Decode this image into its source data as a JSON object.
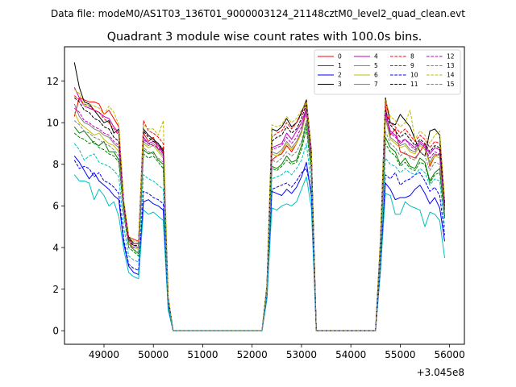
{
  "chart_data": {
    "type": "line",
    "suptitle": "Data file: modeM0/AS1T03_136T01_9000003124_21148cztM0_level2_quad_clean.evt",
    "title": "Quadrant 3 module wise count rates with 100.0s bins.",
    "xlabel": "",
    "ylabel": "",
    "x_offset_label": "+3.045e8",
    "xlim": [
      48200,
      56300
    ],
    "ylim": [
      -0.65,
      13.65
    ],
    "xticks": [
      49000,
      50000,
      51000,
      52000,
      53000,
      54000,
      55000,
      56000
    ],
    "yticks": [
      0,
      2,
      4,
      6,
      8,
      10,
      12
    ],
    "x": [
      48400,
      48500,
      48600,
      48700,
      48800,
      48900,
      49000,
      49100,
      49200,
      49300,
      49400,
      49500,
      49600,
      49700,
      49800,
      49900,
      50000,
      50100,
      50200,
      50300,
      50400,
      52200,
      52300,
      52400,
      52500,
      52600,
      52700,
      52800,
      52900,
      53000,
      53100,
      53200,
      53300,
      53400,
      54500,
      54600,
      54700,
      54800,
      54900,
      55000,
      55100,
      55200,
      55300,
      55400,
      55500,
      55600,
      55700,
      55800,
      55900
    ],
    "legend": {
      "location": "upper-right",
      "columns": 4
    },
    "series": [
      {
        "name": "0",
        "color": "#ff0000",
        "dash": "solid",
        "values": [
          10.3,
          11.2,
          11.1,
          11.0,
          11.0,
          10.9,
          10.4,
          10.6,
          10.2,
          9.8,
          6.0,
          4.5,
          4.4,
          4.3,
          9.5,
          9.1,
          9.3,
          8.7,
          8.8,
          1.5,
          0,
          0,
          2.0,
          8.2,
          8.4,
          8.5,
          8.9,
          8.6,
          9.0,
          9.6,
          10.8,
          8.4,
          0,
          0,
          0,
          4.0,
          10.8,
          9.4,
          9.7,
          8.6,
          8.5,
          8.4,
          8.3,
          8.6,
          9.0,
          7.9,
          8.4,
          8.5,
          6.0
        ]
      },
      {
        "name": "1",
        "color": "#008000",
        "dash": "solid",
        "values": [
          9.8,
          9.5,
          9.6,
          9.3,
          9.0,
          8.9,
          9.1,
          8.6,
          8.6,
          8.2,
          5.8,
          4.2,
          3.9,
          3.7,
          8.7,
          8.5,
          8.6,
          8.2,
          8.0,
          1.4,
          0,
          0,
          1.9,
          7.9,
          7.8,
          8.0,
          8.4,
          8.1,
          8.2,
          8.9,
          10.0,
          7.8,
          0,
          0,
          0,
          3.8,
          9.3,
          8.8,
          8.6,
          8.0,
          8.3,
          7.9,
          7.8,
          8.3,
          8.1,
          7.2,
          7.6,
          7.8,
          5.5
        ]
      },
      {
        "name": "2",
        "color": "#0000ff",
        "dash": "solid",
        "values": [
          8.4,
          8.1,
          7.7,
          7.3,
          7.6,
          7.2,
          7.0,
          6.8,
          6.5,
          6.3,
          4.2,
          3.1,
          2.8,
          2.7,
          6.2,
          6.3,
          6.1,
          6.0,
          5.8,
          1.1,
          0,
          0,
          1.6,
          6.7,
          6.6,
          6.5,
          6.8,
          6.6,
          6.9,
          7.4,
          8.1,
          6.5,
          0,
          0,
          0,
          3.0,
          7.1,
          6.8,
          6.3,
          6.4,
          6.4,
          6.5,
          6.8,
          7.0,
          6.6,
          6.1,
          6.4,
          5.9,
          4.3
        ]
      },
      {
        "name": "3",
        "color": "#000000",
        "dash": "solid",
        "values": [
          12.9,
          11.7,
          11.0,
          10.9,
          10.6,
          10.3,
          10.0,
          10.1,
          9.5,
          9.7,
          6.2,
          4.5,
          4.2,
          4.2,
          9.7,
          9.4,
          9.2,
          9.0,
          8.6,
          1.6,
          0,
          0,
          2.2,
          9.7,
          9.6,
          9.8,
          10.2,
          9.8,
          10.0,
          10.5,
          11.1,
          8.7,
          0,
          0,
          0,
          4.4,
          11.2,
          10.0,
          9.9,
          10.4,
          10.1,
          9.8,
          9.2,
          8.6,
          8.4,
          9.6,
          9.7,
          9.4,
          6.2
        ]
      },
      {
        "name": "4",
        "color": "#bf00bf",
        "dash": "solid",
        "values": [
          11.7,
          11.2,
          10.8,
          10.7,
          10.6,
          10.5,
          10.3,
          10.2,
          9.8,
          9.5,
          6.0,
          4.3,
          4.1,
          4.0,
          9.3,
          9.0,
          9.1,
          8.9,
          8.5,
          1.5,
          0,
          0,
          2.1,
          8.8,
          8.9,
          9.0,
          9.5,
          9.2,
          9.6,
          10.0,
          10.7,
          8.2,
          0,
          0,
          0,
          4.1,
          10.5,
          9.6,
          9.4,
          9.0,
          9.2,
          9.0,
          8.8,
          9.1,
          8.9,
          8.5,
          8.8,
          8.7,
          5.9
        ]
      },
      {
        "name": "5",
        "color": "#00bfbf",
        "dash": "solid",
        "values": [
          7.5,
          7.2,
          7.2,
          7.1,
          6.3,
          6.8,
          6.5,
          6.0,
          6.2,
          5.5,
          3.9,
          2.8,
          2.6,
          2.5,
          5.8,
          5.6,
          5.7,
          5.5,
          5.3,
          1.0,
          0,
          0,
          1.5,
          5.9,
          5.8,
          6.0,
          6.1,
          6.0,
          6.2,
          6.8,
          7.4,
          5.9,
          0,
          0,
          0,
          2.9,
          6.6,
          6.5,
          5.6,
          5.6,
          6.2,
          6.0,
          5.9,
          5.8,
          5.0,
          5.7,
          5.6,
          5.3,
          3.5
        ]
      },
      {
        "name": "6",
        "color": "#bfbf00",
        "dash": "solid",
        "values": [
          10.5,
          10.0,
          9.8,
          9.6,
          9.4,
          9.5,
          9.2,
          9.0,
          8.9,
          8.6,
          5.9,
          4.2,
          4.0,
          3.9,
          9.0,
          8.8,
          8.9,
          8.6,
          8.3,
          1.5,
          0,
          0,
          2.0,
          8.5,
          8.4,
          8.6,
          9.0,
          8.7,
          9.0,
          9.5,
          10.5,
          8.0,
          0,
          0,
          0,
          4.0,
          10.2,
          9.2,
          9.0,
          8.8,
          8.9,
          8.6,
          8.5,
          8.9,
          8.7,
          8.0,
          8.4,
          8.3,
          5.7
        ]
      },
      {
        "name": "7",
        "color": "#808080",
        "dash": "solid",
        "values": [
          10.9,
          10.3,
          10.0,
          9.9,
          9.7,
          9.6,
          9.4,
          9.3,
          9.0,
          8.8,
          6.0,
          4.3,
          4.1,
          4.0,
          9.1,
          8.9,
          9.0,
          8.7,
          8.4,
          1.5,
          0,
          0,
          2.0,
          8.6,
          8.5,
          8.7,
          9.1,
          8.8,
          9.1,
          9.6,
          10.6,
          8.1,
          0,
          0,
          0,
          4.0,
          10.3,
          9.3,
          9.1,
          8.9,
          9.0,
          8.7,
          8.6,
          9.0,
          8.8,
          8.1,
          8.5,
          8.4,
          5.8
        ]
      },
      {
        "name": "8",
        "color": "#ff0000",
        "dash": "dashed",
        "values": [
          11.3,
          11.1,
          10.9,
          10.8,
          10.6,
          10.5,
          10.2,
          10.0,
          9.7,
          9.4,
          6.1,
          4.4,
          4.2,
          4.2,
          10.1,
          9.6,
          9.5,
          9.3,
          9.0,
          1.6,
          0,
          0,
          2.1,
          9.3,
          9.5,
          9.6,
          10.0,
          9.7,
          10.0,
          10.4,
          11.0,
          8.6,
          0,
          0,
          0,
          4.3,
          11.0,
          10.0,
          9.8,
          9.5,
          9.7,
          9.4,
          9.1,
          9.4,
          9.2,
          8.8,
          9.1,
          9.0,
          6.1
        ]
      },
      {
        "name": "9",
        "color": "#008000",
        "dash": "dashed",
        "values": [
          9.5,
          9.3,
          9.2,
          9.0,
          9.1,
          8.8,
          8.7,
          8.5,
          8.4,
          8.1,
          5.6,
          4.0,
          3.8,
          3.6,
          8.5,
          8.3,
          8.4,
          8.1,
          7.8,
          1.4,
          0,
          0,
          1.9,
          7.8,
          7.7,
          7.9,
          8.2,
          8.0,
          8.1,
          8.7,
          9.7,
          7.6,
          0,
          0,
          0,
          3.7,
          9.0,
          8.6,
          8.4,
          7.9,
          8.1,
          7.8,
          7.7,
          8.1,
          8.0,
          7.1,
          7.5,
          7.6,
          5.4
        ]
      },
      {
        "name": "10",
        "color": "#0000ff",
        "dash": "dashed",
        "values": [
          8.2,
          7.8,
          7.9,
          7.8,
          7.4,
          7.6,
          7.2,
          7.1,
          6.9,
          6.6,
          4.4,
          3.2,
          3.0,
          2.9,
          6.7,
          6.6,
          6.4,
          6.3,
          6.1,
          1.2,
          0,
          0,
          1.7,
          6.8,
          6.9,
          7.0,
          7.1,
          6.9,
          7.2,
          7.6,
          7.8,
          6.7,
          0,
          0,
          0,
          3.1,
          7.5,
          7.3,
          7.6,
          7.0,
          7.2,
          7.3,
          7.5,
          7.6,
          7.2,
          6.7,
          6.9,
          6.5,
          4.6
        ]
      },
      {
        "name": "11",
        "color": "#000000",
        "dash": "dashed",
        "values": [
          11.2,
          11.0,
          10.6,
          10.5,
          10.2,
          10.1,
          9.8,
          9.7,
          9.3,
          9.1,
          6.1,
          4.4,
          4.1,
          4.1,
          9.6,
          9.3,
          9.1,
          9.0,
          8.7,
          1.6,
          0,
          0,
          2.1,
          9.1,
          9.3,
          9.4,
          9.8,
          9.5,
          9.7,
          10.2,
          10.9,
          8.5,
          0,
          0,
          0,
          4.2,
          10.6,
          9.9,
          9.6,
          9.3,
          9.5,
          9.2,
          8.9,
          9.2,
          9.0,
          8.6,
          8.9,
          8.8,
          6.0
        ]
      },
      {
        "name": "12",
        "color": "#bf00bf",
        "dash": "dashed",
        "values": [
          10.7,
          10.5,
          10.1,
          10.0,
          9.8,
          9.7,
          9.5,
          9.4,
          9.1,
          8.9,
          5.9,
          4.3,
          4.0,
          4.0,
          9.2,
          9.0,
          8.9,
          8.8,
          8.5,
          1.5,
          0,
          0,
          2.0,
          8.7,
          8.8,
          8.9,
          9.3,
          9.0,
          9.3,
          9.8,
          10.5,
          8.2,
          0,
          0,
          0,
          4.1,
          10.4,
          9.5,
          9.3,
          9.1,
          9.2,
          8.9,
          8.7,
          9.0,
          8.8,
          8.3,
          8.6,
          8.5,
          5.8
        ]
      },
      {
        "name": "13",
        "color": "#00bfbf",
        "dash": "dashed",
        "values": [
          9.0,
          8.7,
          8.2,
          8.4,
          8.5,
          8.1,
          8.0,
          7.9,
          7.7,
          7.4,
          5.0,
          3.6,
          3.4,
          3.3,
          7.5,
          7.3,
          7.2,
          7.0,
          6.8,
          1.3,
          0,
          0,
          1.8,
          7.3,
          7.4,
          7.5,
          7.7,
          7.5,
          7.8,
          8.2,
          9.0,
          7.0,
          0,
          0,
          0,
          3.4,
          8.3,
          8.0,
          7.9,
          7.6,
          7.8,
          7.6,
          7.5,
          7.8,
          7.6,
          7.0,
          7.3,
          7.2,
          5.0
        ]
      },
      {
        "name": "14",
        "color": "#bfbf00",
        "dash": "dashed",
        "values": [
          11.6,
          11.4,
          10.8,
          10.9,
          10.8,
          10.7,
          10.4,
          10.8,
          10.5,
          9.9,
          6.3,
          4.6,
          4.3,
          4.3,
          9.9,
          9.7,
          9.7,
          9.4,
          10.1,
          1.7,
          0,
          0,
          2.2,
          9.9,
          9.8,
          9.9,
          10.3,
          10.0,
          10.2,
          10.6,
          11.0,
          8.7,
          0,
          0,
          0,
          4.5,
          11.1,
          10.3,
          10.1,
          9.8,
          10.0,
          10.6,
          9.2,
          9.6,
          9.4,
          9.0,
          9.4,
          9.6,
          6.3
        ]
      },
      {
        "name": "15",
        "color": "#808080",
        "dash": "dashed",
        "values": [
          10.1,
          9.9,
          9.6,
          9.5,
          9.3,
          9.2,
          9.0,
          8.9,
          8.7,
          8.4,
          5.7,
          4.1,
          3.9,
          3.8,
          8.8,
          8.6,
          8.5,
          8.3,
          8.1,
          1.4,
          0,
          0,
          1.9,
          8.2,
          8.1,
          8.3,
          8.6,
          8.4,
          8.6,
          9.1,
          10.1,
          7.9,
          0,
          0,
          0,
          3.9,
          9.6,
          9.0,
          8.8,
          8.4,
          8.6,
          8.3,
          8.2,
          8.6,
          8.4,
          7.7,
          8.1,
          8.0,
          5.6
        ]
      }
    ]
  }
}
